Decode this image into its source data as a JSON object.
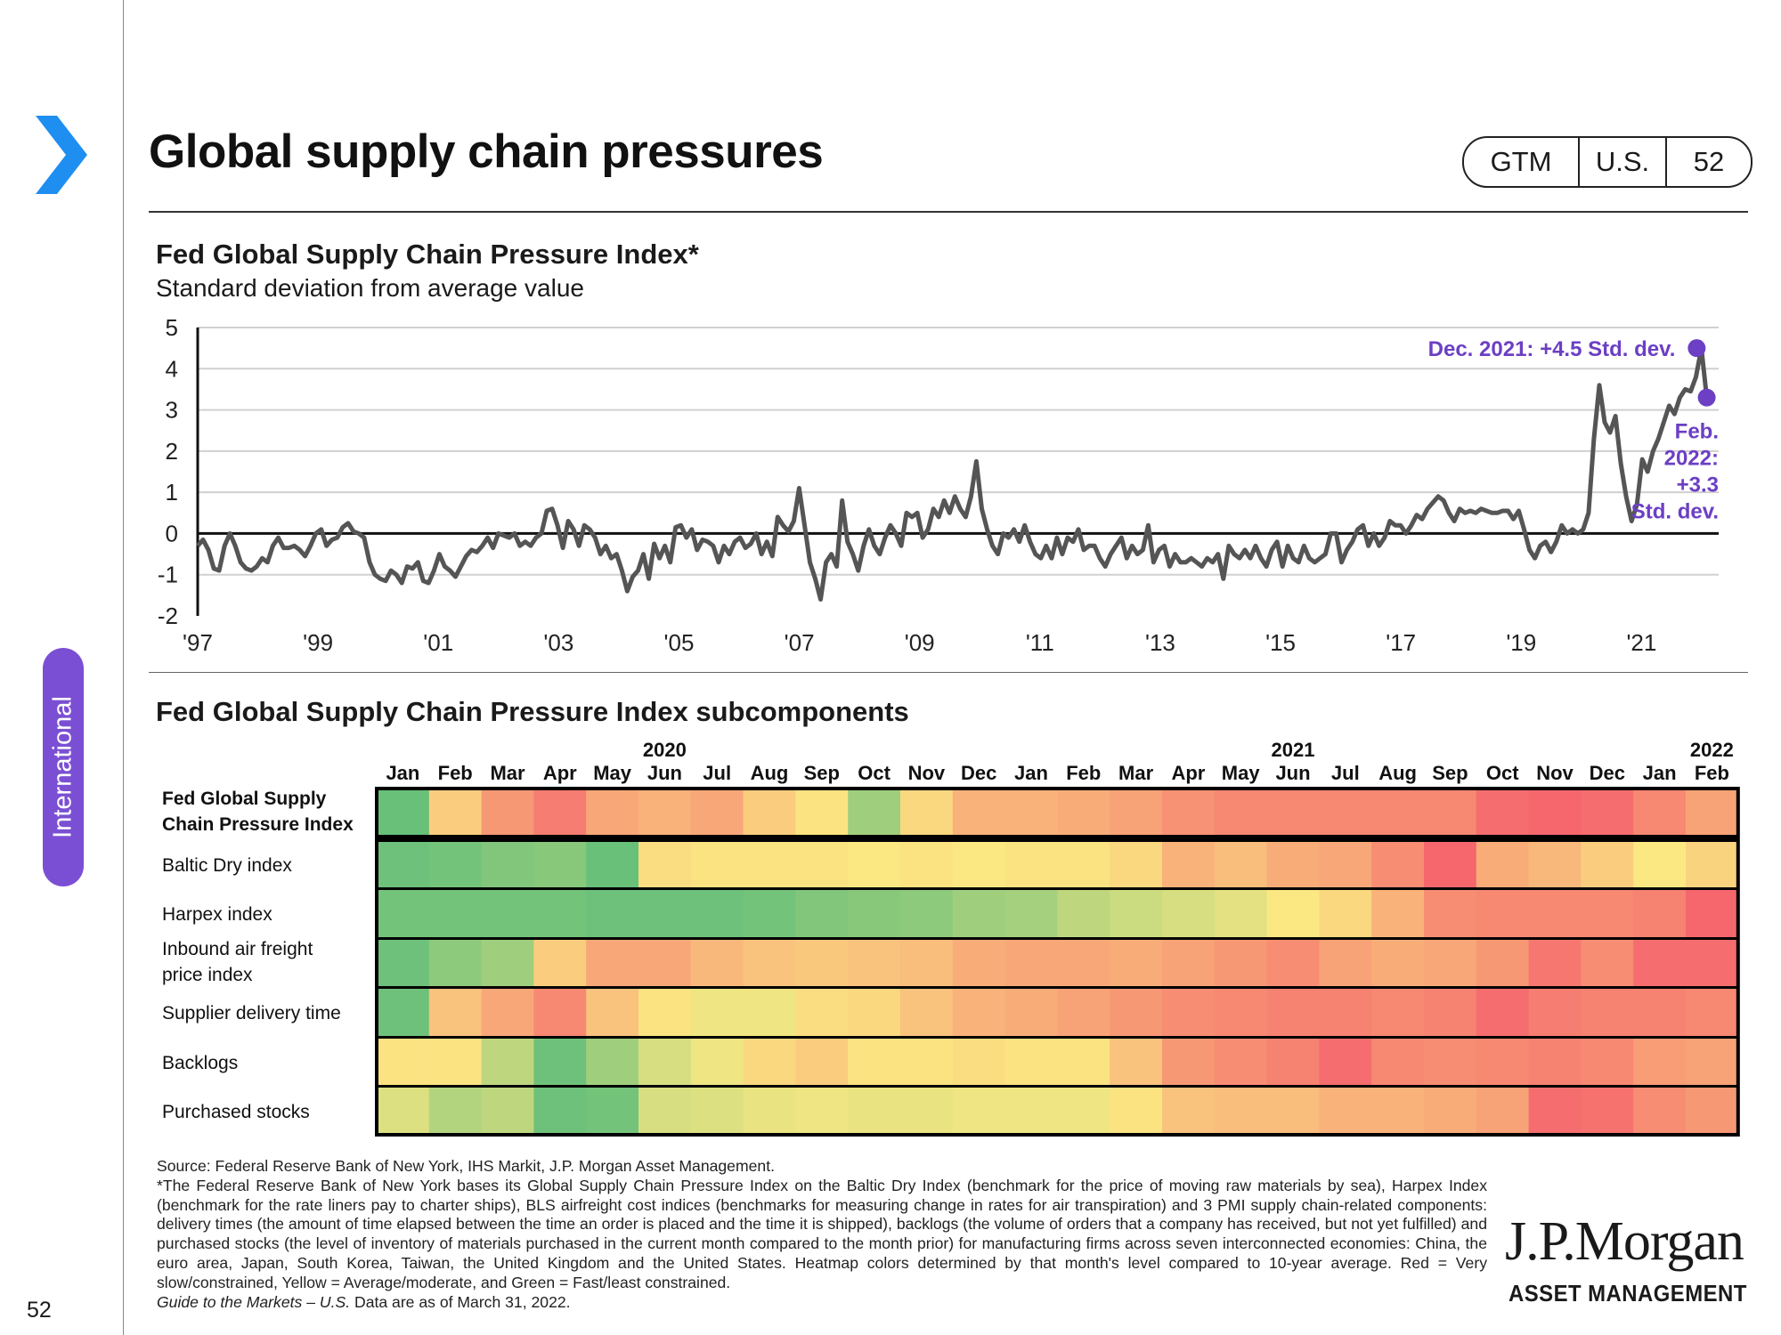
{
  "page": {
    "title": "Global supply chain pressures",
    "badge": [
      "GTM",
      "U.S.",
      "52"
    ],
    "section": "International",
    "page_number": "52"
  },
  "colors": {
    "accent_purple": "#6c3fc4",
    "chevron_blue": "#1f8ef1",
    "line_gray": "#555555"
  },
  "chart_data": [
    {
      "type": "line",
      "title": "Fed Global Supply Chain Pressure Index*",
      "subtitle": "Standard deviation from average value",
      "ylim": [
        -2,
        5
      ],
      "yticks": [
        "5",
        "4",
        "3",
        "2",
        "1",
        "0",
        "-1",
        "-2"
      ],
      "xtick_labels": [
        "'97",
        "'99",
        "'01",
        "'03",
        "'05",
        "'07",
        "'09",
        "'11",
        "'13",
        "'15",
        "'17",
        "'19",
        "'21"
      ],
      "grid": true,
      "x_start": 1997.0,
      "x_step": 0.08333,
      "series": [
        {
          "values": [
            -0.3,
            -0.15,
            -0.4,
            -0.85,
            -0.9,
            -0.3,
            0.0,
            -0.3,
            -0.7,
            -0.85,
            -0.9,
            -0.8,
            -0.6,
            -0.7,
            -0.3,
            -0.1,
            -0.35,
            -0.35,
            -0.3,
            -0.4,
            -0.55,
            -0.3,
            0.0,
            0.1,
            -0.3,
            -0.15,
            -0.1,
            0.15,
            0.25,
            0.05,
            0.0,
            -0.1,
            -0.7,
            -1.0,
            -1.1,
            -1.15,
            -0.9,
            -1.0,
            -1.2,
            -0.8,
            -0.85,
            -0.7,
            -1.15,
            -1.2,
            -0.9,
            -0.5,
            -0.8,
            -0.9,
            -1.05,
            -0.8,
            -0.55,
            -0.4,
            -0.45,
            -0.3,
            -0.1,
            -0.35,
            0.0,
            -0.05,
            -0.1,
            0.0,
            -0.3,
            -0.2,
            -0.3,
            -0.1,
            0.0,
            0.55,
            0.6,
            0.2,
            -0.35,
            0.3,
            0.1,
            -0.3,
            0.2,
            0.1,
            -0.1,
            -0.5,
            -0.3,
            -0.6,
            -0.5,
            -0.9,
            -1.4,
            -1.05,
            -0.9,
            -0.5,
            -1.1,
            -0.25,
            -0.6,
            -0.3,
            -0.7,
            0.15,
            0.2,
            -0.1,
            0.1,
            -0.4,
            -0.15,
            -0.2,
            -0.3,
            -0.7,
            -0.3,
            -0.5,
            -0.2,
            -0.1,
            -0.35,
            -0.25,
            0.0,
            -0.5,
            -0.2,
            -0.55,
            0.4,
            0.2,
            0.05,
            0.3,
            1.1,
            0.2,
            -0.7,
            -1.1,
            -1.6,
            -0.7,
            -0.5,
            -0.8,
            0.8,
            -0.2,
            -0.5,
            -0.9,
            -0.3,
            0.1,
            -0.3,
            -0.5,
            -0.1,
            0.2,
            0.0,
            -0.3,
            0.5,
            0.4,
            0.5,
            -0.1,
            0.1,
            0.6,
            0.4,
            0.8,
            0.5,
            0.9,
            0.6,
            0.4,
            0.9,
            1.75,
            0.6,
            0.1,
            -0.3,
            -0.5,
            0.0,
            -0.1,
            0.1,
            -0.2,
            0.2,
            -0.2,
            -0.5,
            -0.6,
            -0.3,
            -0.6,
            -0.1,
            -0.5,
            -0.1,
            -0.2,
            0.1,
            -0.4,
            -0.3,
            -0.3,
            -0.6,
            -0.8,
            -0.5,
            -0.3,
            -0.1,
            -0.6,
            -0.3,
            -0.5,
            -0.4,
            0.2,
            -0.7,
            -0.4,
            -0.3,
            -0.8,
            -0.5,
            -0.7,
            -0.7,
            -0.6,
            -0.7,
            -0.8,
            -0.6,
            -0.7,
            -0.5,
            -1.1,
            -0.3,
            -0.5,
            -0.6,
            -0.4,
            -0.6,
            -0.3,
            -0.6,
            -0.8,
            -0.4,
            -0.2,
            -0.8,
            -0.3,
            -0.6,
            -0.7,
            -0.3,
            -0.6,
            -0.7,
            -0.6,
            -0.5,
            0.0,
            0.0,
            -0.7,
            -0.4,
            -0.2,
            0.1,
            0.2,
            -0.3,
            0.0,
            -0.3,
            -0.1,
            0.3,
            0.2,
            0.2,
            0.0,
            0.2,
            0.45,
            0.35,
            0.6,
            0.75,
            0.9,
            0.8,
            0.5,
            0.3,
            0.6,
            0.5,
            0.55,
            0.5,
            0.6,
            0.55,
            0.5,
            0.5,
            0.55,
            0.55,
            0.35,
            0.55,
            0.1,
            -0.4,
            -0.6,
            -0.3,
            -0.2,
            -0.45,
            -0.2,
            0.2,
            0.0,
            0.1,
            0.0,
            0.1,
            0.5,
            2.3,
            3.6,
            2.7,
            2.45,
            2.85,
            1.7,
            0.9,
            0.3,
            0.7,
            1.8,
            1.5,
            2.0,
            2.3,
            2.7,
            3.1,
            2.9,
            3.3,
            3.5,
            3.45,
            3.8,
            4.5,
            3.3
          ]
        }
      ],
      "annotations": [
        {
          "text": "Dec. 2021: +4.5 Std. dev.",
          "x": 2021.917,
          "y": 4.5
        },
        {
          "text": [
            "Feb.",
            "2022:",
            "+3.3",
            "Std. dev."
          ],
          "x": 2022.083,
          "y": 3.3
        }
      ]
    },
    {
      "type": "heatmap",
      "title": "Fed Global Supply Chain Pressure Index subcomponents",
      "year_labels": [
        "2020",
        "2021",
        "2022"
      ],
      "year_label_columns": [
        5,
        17,
        25
      ],
      "columns": [
        "Jan",
        "Feb",
        "Mar",
        "Apr",
        "May",
        "Jun",
        "Jul",
        "Aug",
        "Sep",
        "Oct",
        "Nov",
        "Dec",
        "Jan",
        "Feb",
        "Mar",
        "Apr",
        "May",
        "Jun",
        "Jul",
        "Aug",
        "Sep",
        "Oct",
        "Nov",
        "Dec",
        "Jan",
        "Feb"
      ],
      "color_scale": {
        "stops": [
          {
            "v": 0.0,
            "color": "#62be79"
          },
          {
            "v": 0.5,
            "color": "#fbe883"
          },
          {
            "v": 1.0,
            "color": "#f5626c"
          }
        ],
        "meaning": "Red = Very slow/constrained, Yellow = Average/moderate, Green = Fast/least constrained"
      },
      "rows": [
        {
          "label": [
            "Fed Global Supply",
            "Chain Pressure Index"
          ],
          "bold": true,
          "values": [
            0.02,
            0.6,
            0.8,
            0.9,
            0.74,
            0.7,
            0.74,
            0.6,
            0.52,
            0.2,
            0.56,
            0.7,
            0.7,
            0.72,
            0.76,
            0.82,
            0.86,
            0.86,
            0.86,
            0.86,
            0.86,
            0.96,
            0.98,
            0.96,
            0.86,
            0.76
          ]
        },
        {
          "label": [
            "Baltic Dry index"
          ],
          "bold": false,
          "values": [
            0.04,
            0.06,
            0.1,
            0.12,
            0.02,
            0.54,
            0.52,
            0.52,
            0.52,
            0.5,
            0.52,
            0.5,
            0.52,
            0.52,
            0.56,
            0.7,
            0.66,
            0.72,
            0.74,
            0.84,
            0.98,
            0.72,
            0.68,
            0.6,
            0.5,
            0.58
          ]
        },
        {
          "label": [
            "Harpex index"
          ],
          "bold": false,
          "values": [
            0.06,
            0.06,
            0.06,
            0.06,
            0.04,
            0.04,
            0.04,
            0.06,
            0.1,
            0.12,
            0.14,
            0.2,
            0.22,
            0.3,
            0.34,
            0.38,
            0.42,
            0.5,
            0.56,
            0.7,
            0.84,
            0.86,
            0.86,
            0.86,
            0.88,
            0.98
          ]
        },
        {
          "label": [
            "Inbound air freight",
            "price index"
          ],
          "bold": false,
          "values": [
            0.04,
            0.14,
            0.2,
            0.6,
            0.74,
            0.74,
            0.68,
            0.64,
            0.62,
            0.64,
            0.66,
            0.72,
            0.74,
            0.74,
            0.72,
            0.76,
            0.8,
            0.84,
            0.76,
            0.72,
            0.74,
            0.8,
            0.92,
            0.84,
            0.96,
            0.96
          ]
        },
        {
          "label": [
            "Supplier delivery time"
          ],
          "bold": false,
          "values": [
            0.04,
            0.64,
            0.74,
            0.86,
            0.64,
            0.52,
            0.46,
            0.46,
            0.54,
            0.56,
            0.64,
            0.7,
            0.72,
            0.76,
            0.8,
            0.84,
            0.86,
            0.88,
            0.88,
            0.86,
            0.88,
            0.96,
            0.9,
            0.88,
            0.88,
            0.86
          ]
        },
        {
          "label": [
            "Backlogs"
          ],
          "bold": false,
          "values": [
            0.52,
            0.52,
            0.3,
            0.04,
            0.2,
            0.38,
            0.46,
            0.56,
            0.6,
            0.52,
            0.52,
            0.54,
            0.52,
            0.52,
            0.64,
            0.8,
            0.84,
            0.88,
            0.96,
            0.86,
            0.84,
            0.86,
            0.88,
            0.86,
            0.78,
            0.76
          ]
        },
        {
          "label": [
            "Purchased stocks"
          ],
          "bold": false,
          "values": [
            0.4,
            0.26,
            0.3,
            0.04,
            0.06,
            0.38,
            0.4,
            0.44,
            0.46,
            0.44,
            0.44,
            0.46,
            0.46,
            0.46,
            0.52,
            0.64,
            0.66,
            0.66,
            0.7,
            0.7,
            0.72,
            0.76,
            0.96,
            0.94,
            0.84,
            0.8
          ]
        }
      ]
    }
  ],
  "footnotes": {
    "source": "Source: Federal Reserve Bank of New York, IHS Markit, J.P. Morgan Asset Management.",
    "body": "*The Federal Reserve Bank of New York bases its  Global Supply Chain Pressure Index on the Baltic Dry Index (benchmark for the price of moving raw materials by sea), Harpex Index (benchmark for the rate liners pay to charter ships), BLS airfreight cost indices (benchmarks for measuring change in rates for air transpiration) and 3 PMI supply chain-related components: delivery times (the amount of time elapsed between the time an order is placed and the time it is shipped), backlogs (the volume of orders that a company has received, but not yet fulfilled) and purchased stocks (the level of inventory of materials purchased in the current month compared to the month prior) for manufacturing firms across seven interconnected economies: China, the euro area, Japan, South Korea, Taiwan, the United Kingdom and the United States. Heatmap colors determined by that month's level compared to 10-year average. Red = Very slow/constrained, Yellow = Average/moderate, and Green = Fast/least constrained.",
    "guide": "Guide to the Markets – U.S.",
    "asof": " Data are as of March 31, 2022."
  },
  "logo": {
    "main": "J.P.Morgan",
    "sub": "ASSET MANAGEMENT"
  }
}
